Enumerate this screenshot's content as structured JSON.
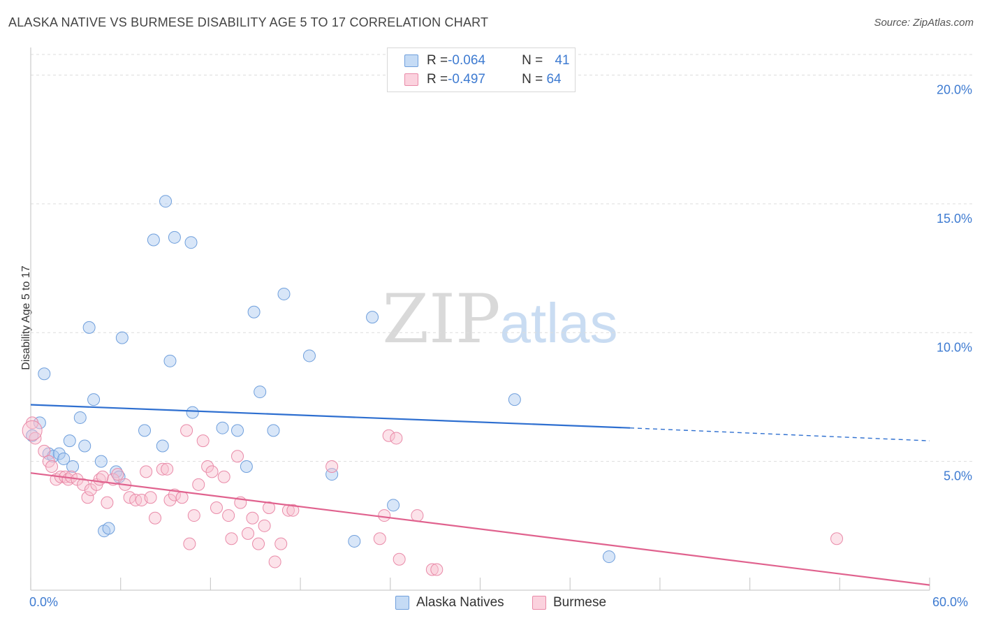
{
  "title": "ALASKA NATIVE VS BURMESE DISABILITY AGE 5 TO 17 CORRELATION CHART",
  "source": "Source: ZipAtlas.com",
  "watermark": {
    "zip": "ZIP",
    "atlas": "atlas"
  },
  "legend_top": {
    "rows": [
      {
        "r_label": "R = ",
        "r_value": "-0.064",
        "n_label": "N = ",
        "n_value": "41",
        "color": "#a8c8f0",
        "stroke": "#6f9fdc"
      },
      {
        "r_label": "R = ",
        "r_value": "-0.497",
        "n_label": "N = ",
        "n_value": "64",
        "color": "#f9c0d0",
        "stroke": "#e98aa8"
      }
    ]
  },
  "x_axis": {
    "min_label": "0.0%",
    "max_label": "60.0%"
  },
  "chart_data": {
    "type": "scatter",
    "title": "ALASKA NATIVE VS BURMESE DISABILITY AGE 5 TO 17 CORRELATION CHART",
    "xlabel": "",
    "ylabel": "Disability Age 5 to 17",
    "xlim": [
      0,
      60
    ],
    "ylim": [
      0,
      20.8
    ],
    "yticks": [
      5,
      10,
      15,
      20
    ],
    "ytick_labels": [
      "5.0%",
      "10.0%",
      "15.0%",
      "20.0%"
    ],
    "grid": true,
    "series": [
      {
        "name": "Alaska Natives",
        "color": "#a8c8f0",
        "stroke": "#6f9fdc",
        "line_color": "#2e6fd0",
        "trend": {
          "x0": 0,
          "y0": 7.2,
          "x1": 40,
          "y1": 6.3,
          "dash_to_x": 60,
          "dash_to_y": 5.8
        },
        "points": [
          [
            0.1,
            6.0
          ],
          [
            0.6,
            6.5
          ],
          [
            0.9,
            8.4
          ],
          [
            1.2,
            5.3
          ],
          [
            1.5,
            5.2
          ],
          [
            1.9,
            5.3
          ],
          [
            2.2,
            5.1
          ],
          [
            2.6,
            5.8
          ],
          [
            2.8,
            4.8
          ],
          [
            3.3,
            6.7
          ],
          [
            3.6,
            5.6
          ],
          [
            3.9,
            10.2
          ],
          [
            4.2,
            7.4
          ],
          [
            4.7,
            5.0
          ],
          [
            4.9,
            2.3
          ],
          [
            5.2,
            2.4
          ],
          [
            5.7,
            4.6
          ],
          [
            5.9,
            4.4
          ],
          [
            6.1,
            9.8
          ],
          [
            7.6,
            6.2
          ],
          [
            8.2,
            13.6
          ],
          [
            8.8,
            5.6
          ],
          [
            9.0,
            15.1
          ],
          [
            9.3,
            8.9
          ],
          [
            9.6,
            13.7
          ],
          [
            10.7,
            13.5
          ],
          [
            10.8,
            6.9
          ],
          [
            12.8,
            6.3
          ],
          [
            13.8,
            6.2
          ],
          [
            14.4,
            4.8
          ],
          [
            14.9,
            10.8
          ],
          [
            15.3,
            7.7
          ],
          [
            16.2,
            6.2
          ],
          [
            16.9,
            11.5
          ],
          [
            18.6,
            9.1
          ],
          [
            20.1,
            4.5
          ],
          [
            21.6,
            1.9
          ],
          [
            22.8,
            10.6
          ],
          [
            24.2,
            3.3
          ],
          [
            32.3,
            7.4
          ],
          [
            38.6,
            1.3
          ]
        ]
      },
      {
        "name": "Burmese",
        "color": "#f9c0d0",
        "stroke": "#e98aa8",
        "line_color": "#e0628e",
        "trend": {
          "x0": 0,
          "y0": 4.55,
          "x1": 60,
          "y1": 0.2
        },
        "points": [
          [
            0.1,
            6.5
          ],
          [
            0.3,
            5.9
          ],
          [
            0.9,
            5.4
          ],
          [
            1.2,
            5.0
          ],
          [
            1.4,
            4.8
          ],
          [
            1.7,
            4.3
          ],
          [
            2.0,
            4.4
          ],
          [
            2.3,
            4.4
          ],
          [
            2.5,
            4.3
          ],
          [
            2.7,
            4.4
          ],
          [
            3.1,
            4.3
          ],
          [
            3.5,
            4.1
          ],
          [
            3.8,
            3.6
          ],
          [
            4.0,
            3.9
          ],
          [
            4.4,
            4.1
          ],
          [
            4.6,
            4.3
          ],
          [
            4.8,
            4.4
          ],
          [
            5.1,
            3.4
          ],
          [
            5.5,
            4.3
          ],
          [
            5.8,
            4.5
          ],
          [
            6.3,
            4.1
          ],
          [
            6.6,
            3.6
          ],
          [
            7.0,
            3.5
          ],
          [
            7.4,
            3.5
          ],
          [
            7.7,
            4.6
          ],
          [
            8.0,
            3.6
          ],
          [
            8.3,
            2.8
          ],
          [
            8.8,
            4.7
          ],
          [
            9.1,
            4.7
          ],
          [
            9.3,
            3.5
          ],
          [
            9.6,
            3.7
          ],
          [
            10.1,
            3.6
          ],
          [
            10.4,
            6.2
          ],
          [
            10.6,
            1.8
          ],
          [
            10.9,
            2.9
          ],
          [
            11.2,
            4.1
          ],
          [
            11.5,
            5.8
          ],
          [
            11.8,
            4.8
          ],
          [
            12.1,
            4.6
          ],
          [
            12.4,
            3.2
          ],
          [
            12.9,
            4.4
          ],
          [
            13.2,
            2.9
          ],
          [
            13.4,
            2.0
          ],
          [
            13.8,
            5.2
          ],
          [
            14.0,
            3.4
          ],
          [
            14.5,
            2.2
          ],
          [
            14.8,
            2.8
          ],
          [
            15.2,
            1.8
          ],
          [
            15.6,
            2.5
          ],
          [
            15.9,
            3.2
          ],
          [
            16.3,
            1.1
          ],
          [
            16.7,
            1.8
          ],
          [
            17.2,
            3.1
          ],
          [
            17.5,
            3.1
          ],
          [
            20.1,
            4.8
          ],
          [
            23.3,
            2.0
          ],
          [
            23.6,
            2.9
          ],
          [
            23.9,
            6.0
          ],
          [
            24.4,
            5.9
          ],
          [
            24.6,
            1.2
          ],
          [
            25.8,
            2.9
          ],
          [
            26.8,
            0.8
          ],
          [
            27.1,
            0.8
          ],
          [
            53.8,
            2.0
          ]
        ]
      }
    ]
  }
}
